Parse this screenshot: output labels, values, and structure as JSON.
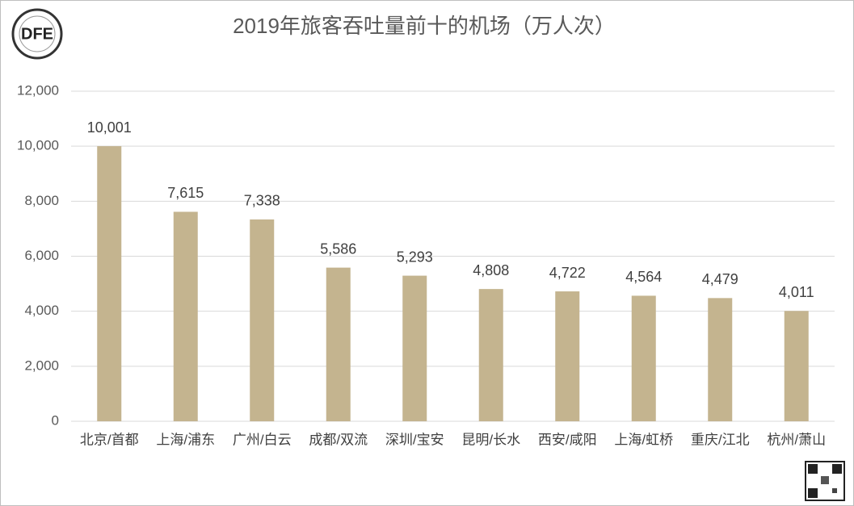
{
  "logo": "DFE",
  "chart_data": {
    "type": "bar",
    "title": "2019年旅客吞吐量前十的机场（万人次）",
    "categories": [
      "北京/首都",
      "上海/浦东",
      "广州/白云",
      "成都/双流",
      "深圳/宝安",
      "昆明/长水",
      "西安/咸阳",
      "上海/虹桥",
      "重庆/江北",
      "杭州/萧山"
    ],
    "values": [
      10001,
      7615,
      7338,
      5586,
      5293,
      4808,
      4722,
      4564,
      4479,
      4011
    ],
    "value_labels": [
      "10,001",
      "7,615",
      "7,338",
      "5,586",
      "5,293",
      "4,808",
      "4,722",
      "4,564",
      "4,479",
      "4,011"
    ],
    "color": "#c4b48f",
    "ylim": [
      0,
      12000
    ],
    "yticks": [
      0,
      {
        "value": 2000,
        "label": "2,000"
      },
      {
        "value": 4000,
        "label": "4,000"
      },
      {
        "value": 6000,
        "label": "6,000"
      },
      {
        "value": 8000,
        "label": "8,000"
      },
      {
        "value": 10000,
        "label": "10,000"
      },
      {
        "value": 12000,
        "label": "12,000"
      }
    ],
    "grid": true
  }
}
